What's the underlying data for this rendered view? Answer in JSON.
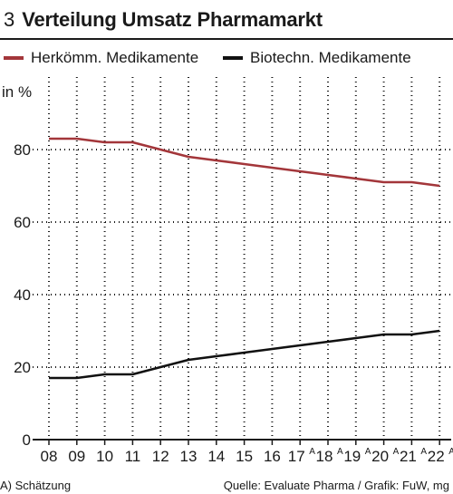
{
  "header": {
    "number": "3",
    "title": "Verteilung Umsatz Pharmamarkt"
  },
  "footer": {
    "note": "A) Schätzung",
    "source": "Quelle: Evaluate Pharma / Grafik: FuW, mg"
  },
  "colors": {
    "series1": "#a3363a",
    "series2": "#111111",
    "axis": "#1a1a1a",
    "grid": "#1a1a1a"
  },
  "chart_data": {
    "type": "line",
    "ylabel": "in %",
    "ylim": [
      0,
      100
    ],
    "yticks": [
      0,
      20,
      40,
      60,
      80
    ],
    "grid": "dotted vertical and horizontal",
    "legend": "top",
    "categories": [
      "08",
      "09",
      "10",
      "11",
      "12",
      "13",
      "14",
      "15",
      "16",
      "17",
      "18",
      "19",
      "20",
      "21",
      "22"
    ],
    "estimate_marker": "A",
    "estimated_categories": [
      "17",
      "18",
      "19",
      "20",
      "21",
      "22"
    ],
    "series": [
      {
        "name": "Herkömm. Medikamente",
        "values": [
          83,
          83,
          82,
          82,
          80,
          78,
          77,
          76,
          75,
          74,
          73,
          72,
          71,
          71,
          70
        ]
      },
      {
        "name": "Biotechn. Medikamente",
        "values": [
          17,
          17,
          18,
          18,
          20,
          22,
          23,
          24,
          25,
          26,
          27,
          28,
          29,
          29,
          30
        ]
      }
    ]
  }
}
